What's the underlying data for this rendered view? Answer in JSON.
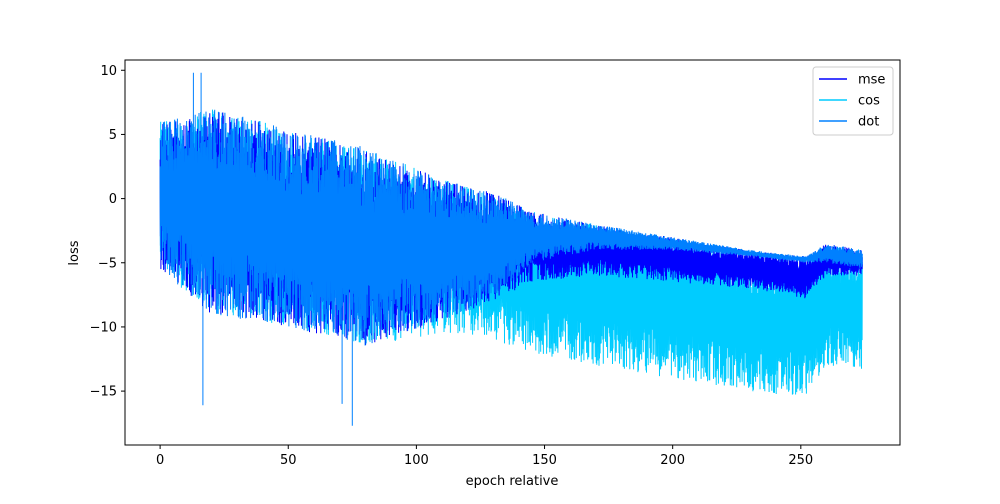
{
  "chart_data": {
    "type": "line",
    "title": "",
    "xlabel": "epoch relative",
    "ylabel": "loss",
    "xlim": [
      -13.7,
      288.7
    ],
    "ylim": [
      -19.2,
      10.8
    ],
    "x_ticks": [
      0,
      50,
      100,
      150,
      200,
      250
    ],
    "y_ticks": [
      10,
      5,
      0,
      -5,
      -10,
      -15
    ],
    "grid": false,
    "legend_position": "top-right",
    "series": [
      {
        "name": "mse",
        "color": "#0000ff",
        "envelope": [
          {
            "x": 0,
            "low": -5.5,
            "high": 6.0
          },
          {
            "x": 20,
            "low": -9.0,
            "high": 7.0
          },
          {
            "x": 50,
            "low": -10.0,
            "high": 5.5
          },
          {
            "x": 80,
            "low": -11.5,
            "high": 4.0
          },
          {
            "x": 110,
            "low": -9.5,
            "high": 1.5
          },
          {
            "x": 130,
            "low": -8.0,
            "high": 0.5
          },
          {
            "x": 145,
            "low": -6.5,
            "high": -1.0
          },
          {
            "x": 170,
            "low": -6.0,
            "high": -2.0
          },
          {
            "x": 200,
            "low": -6.5,
            "high": -3.0
          },
          {
            "x": 230,
            "low": -7.0,
            "high": -4.0
          },
          {
            "x": 252,
            "low": -7.8,
            "high": -4.5
          },
          {
            "x": 260,
            "low": -6.0,
            "high": -3.5
          },
          {
            "x": 274,
            "low": -6.0,
            "high": -4.0
          }
        ]
      },
      {
        "name": "cos",
        "color": "#00ccff",
        "envelope": [
          {
            "x": 0,
            "low": -5.5,
            "high": 6.0
          },
          {
            "x": 20,
            "low": -9.0,
            "high": 7.0
          },
          {
            "x": 50,
            "low": -10.0,
            "high": 5.5
          },
          {
            "x": 80,
            "low": -11.5,
            "high": 4.0
          },
          {
            "x": 110,
            "low": -10.5,
            "high": 1.5
          },
          {
            "x": 130,
            "low": -11.0,
            "high": 0.5
          },
          {
            "x": 145,
            "low": -12.0,
            "high": -1.0
          },
          {
            "x": 170,
            "low": -13.0,
            "high": -2.0
          },
          {
            "x": 200,
            "low": -14.0,
            "high": -3.0
          },
          {
            "x": 230,
            "low": -15.0,
            "high": -4.0
          },
          {
            "x": 252,
            "low": -15.5,
            "high": -4.5
          },
          {
            "x": 260,
            "low": -13.0,
            "high": -3.5
          },
          {
            "x": 274,
            "low": -13.5,
            "high": -4.0
          }
        ]
      },
      {
        "name": "dot",
        "color": "#0080ff",
        "envelope": [
          {
            "x": 0,
            "low": -5.5,
            "high": 6.0
          },
          {
            "x": 20,
            "low": -9.0,
            "high": 7.0
          },
          {
            "x": 50,
            "low": -10.0,
            "high": 5.5
          },
          {
            "x": 80,
            "low": -11.5,
            "high": 4.0
          },
          {
            "x": 110,
            "low": -9.5,
            "high": 1.5
          },
          {
            "x": 130,
            "low": -8.0,
            "high": 0.5
          },
          {
            "x": 145,
            "low": -5.0,
            "high": -1.0
          },
          {
            "x": 170,
            "low": -4.0,
            "high": -2.0
          },
          {
            "x": 200,
            "low": -4.0,
            "high": -3.0
          },
          {
            "x": 230,
            "low": -4.5,
            "high": -4.0
          },
          {
            "x": 252,
            "low": -5.0,
            "high": -4.5
          },
          {
            "x": 260,
            "low": -5.0,
            "high": -3.5
          },
          {
            "x": 274,
            "low": -5.5,
            "high": -4.0
          }
        ],
        "spikes": [
          {
            "x": 13,
            "y": 9.8
          },
          {
            "x": 16,
            "y": 9.8
          },
          {
            "x": 16.7,
            "y": -16.1
          },
          {
            "x": 75,
            "y": -17.7
          },
          {
            "x": 71,
            "y": -16.0
          }
        ]
      }
    ]
  }
}
